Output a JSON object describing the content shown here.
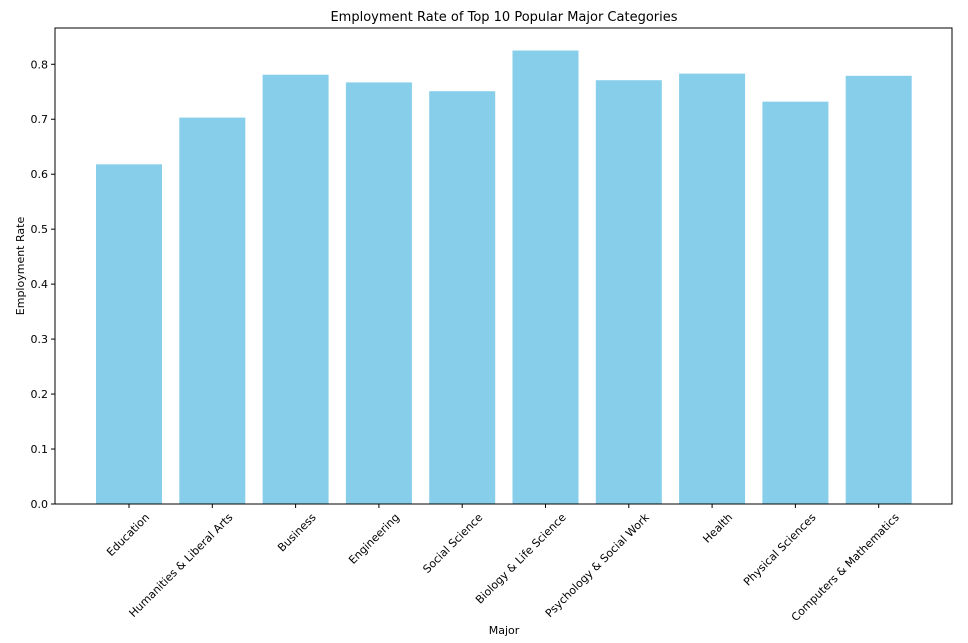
{
  "chart_data": {
    "type": "bar",
    "title": "Employment Rate of Top 10 Popular Major Categories",
    "xlabel": "Major",
    "ylabel": "Employment Rate",
    "categories": [
      "Education",
      "Humanities & Liberal Arts",
      "Business",
      "Engineering",
      "Social Science",
      "Biology & Life Science",
      "Psychology & Social Work",
      "Health",
      "Physical Sciences",
      "Computers & Mathematics"
    ],
    "values": [
      0.618,
      0.703,
      0.781,
      0.767,
      0.751,
      0.825,
      0.771,
      0.783,
      0.732,
      0.779
    ],
    "ylim": [
      0,
      0.866
    ],
    "yticks": [
      "0.0",
      "0.1",
      "0.2",
      "0.3",
      "0.4",
      "0.5",
      "0.6",
      "0.7",
      "0.8"
    ],
    "bar_color": "#87ceeb",
    "grid": false
  }
}
